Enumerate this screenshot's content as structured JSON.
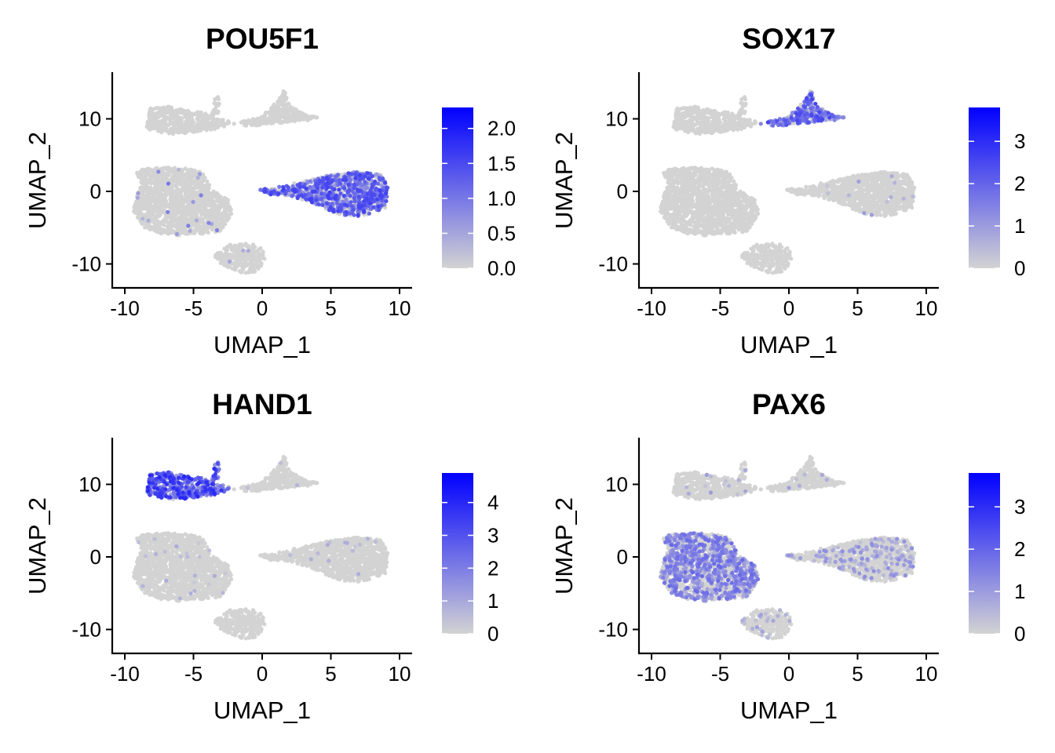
{
  "chart_data": [
    {
      "type": "scatter",
      "title": "POU5F1",
      "xlabel": "UMAP_1",
      "ylabel": "UMAP_2",
      "xlim": [
        -10.8,
        10.8
      ],
      "ylim": [
        -13.5,
        16.5
      ],
      "xticks": [
        -10,
        -5,
        0,
        5,
        10
      ],
      "xtick_labels": [
        "-10",
        "-5",
        "0",
        "5",
        "10"
      ],
      "yticks": [
        -10,
        0,
        10
      ],
      "ytick_labels": [
        "-10",
        "0",
        "10"
      ],
      "grid": false,
      "legend_position": "right",
      "legend": {
        "min": 0,
        "max": 2.3,
        "ticks": [
          0,
          0.5,
          1.0,
          1.5,
          2.0
        ],
        "tick_labels": [
          "0.0",
          "0.5",
          "1.0",
          "1.5",
          "2.0"
        ],
        "low_color": "#d3d3d3",
        "high_color": "#0000ff"
      },
      "clusters_expression": {
        "top_left": 0.0,
        "top_right": 0.0,
        "middle_left": 0.0,
        "middle_right": 1.0,
        "bottom_small": 0.0
      },
      "cluster_fraction_expressing": {
        "top_left": 0.0,
        "top_right": 0.0,
        "middle_left": 0.02,
        "middle_right": 0.6,
        "bottom_small": 0.01
      }
    },
    {
      "type": "scatter",
      "title": "SOX17",
      "xlabel": "UMAP_1",
      "ylabel": "UMAP_2",
      "xlim": [
        -10.8,
        10.8
      ],
      "ylim": [
        -13.5,
        16.5
      ],
      "xticks": [
        -10,
        -5,
        0,
        5,
        10
      ],
      "xtick_labels": [
        "-10",
        "-5",
        "0",
        "5",
        "10"
      ],
      "yticks": [
        -10,
        0,
        10
      ],
      "ytick_labels": [
        "-10",
        "0",
        "10"
      ],
      "grid": false,
      "legend_position": "right",
      "legend": {
        "min": 0,
        "max": 3.8,
        "ticks": [
          0,
          1,
          2,
          3
        ],
        "tick_labels": [
          "0",
          "1",
          "2",
          "3"
        ],
        "low_color": "#d3d3d3",
        "high_color": "#0000ff"
      },
      "clusters_expression": {
        "top_left": 0.0,
        "top_right": 1.6,
        "middle_left": 0.0,
        "middle_right": 0.0,
        "bottom_small": 0.0
      },
      "cluster_fraction_expressing": {
        "top_left": 0.0,
        "top_right": 0.7,
        "middle_left": 0.0,
        "middle_right": 0.01,
        "bottom_small": 0.0
      }
    },
    {
      "type": "scatter",
      "title": "HAND1",
      "xlabel": "UMAP_1",
      "ylabel": "UMAP_2",
      "xlim": [
        -10.8,
        10.8
      ],
      "ylim": [
        -13.5,
        16.5
      ],
      "xticks": [
        -10,
        -5,
        0,
        5,
        10
      ],
      "xtick_labels": [
        "-10",
        "-5",
        "0",
        "5",
        "10"
      ],
      "yticks": [
        -10,
        0,
        10
      ],
      "ytick_labels": [
        "-10",
        "0",
        "10"
      ],
      "grid": false,
      "legend_position": "right",
      "legend": {
        "min": 0,
        "max": 4.9,
        "ticks": [
          0,
          1,
          2,
          3,
          4
        ],
        "tick_labels": [
          "0",
          "1",
          "2",
          "3",
          "4"
        ],
        "low_color": "#d3d3d3",
        "high_color": "#0000ff"
      },
      "clusters_expression": {
        "top_left": 2.5,
        "top_right": 0.0,
        "middle_left": 0.0,
        "middle_right": 0.0,
        "bottom_small": 0.0
      },
      "cluster_fraction_expressing": {
        "top_left": 0.75,
        "top_right": 0.02,
        "middle_left": 0.02,
        "middle_right": 0.01,
        "bottom_small": 0.0
      }
    },
    {
      "type": "scatter",
      "title": "PAX6",
      "xlabel": "UMAP_1",
      "ylabel": "UMAP_2",
      "xlim": [
        -10.8,
        10.8
      ],
      "ylim": [
        -13.5,
        16.5
      ],
      "xticks": [
        -10,
        -5,
        0,
        5,
        10
      ],
      "xtick_labels": [
        "-10",
        "-5",
        "0",
        "5",
        "10"
      ],
      "yticks": [
        -10,
        0,
        10
      ],
      "ytick_labels": [
        "-10",
        "0",
        "10"
      ],
      "grid": false,
      "legend_position": "right",
      "legend": {
        "min": 0,
        "max": 3.8,
        "ticks": [
          0,
          1,
          2,
          3
        ],
        "tick_labels": [
          "0",
          "1",
          "2",
          "3"
        ],
        "low_color": "#d3d3d3",
        "high_color": "#0000ff"
      },
      "clusters_expression": {
        "top_left": 0.0,
        "top_right": 0.0,
        "middle_left": 1.2,
        "middle_right": 0.8,
        "bottom_small": 0.6
      },
      "cluster_fraction_expressing": {
        "top_left": 0.03,
        "top_right": 0.03,
        "middle_left": 0.45,
        "middle_right": 0.15,
        "bottom_small": 0.1
      }
    }
  ]
}
